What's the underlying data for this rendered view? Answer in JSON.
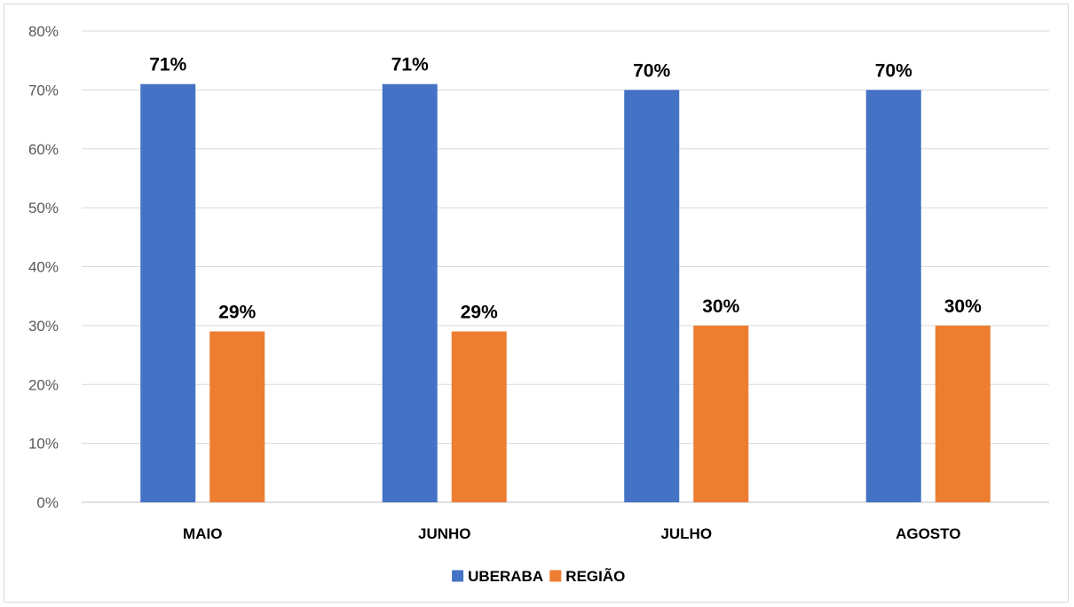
{
  "chart_data": {
    "type": "bar",
    "categories": [
      "MAIO",
      "JUNHO",
      "JULHO",
      "AGOSTO"
    ],
    "series": [
      {
        "name": "UBERABA",
        "values": [
          71,
          71,
          70,
          70
        ],
        "labels": [
          "71%",
          "71%",
          "70%",
          "70%"
        ],
        "color": "#4472c4"
      },
      {
        "name": "REGIÃO",
        "values": [
          29,
          29,
          30,
          30
        ],
        "labels": [
          "29%",
          "29%",
          "30%",
          "30%"
        ],
        "color": "#ed7d31"
      }
    ],
    "ylim": [
      0,
      80
    ],
    "yticks": [
      "0%",
      "10%",
      "20%",
      "30%",
      "40%",
      "50%",
      "60%",
      "70%",
      "80%"
    ],
    "grid": true,
    "legend": "bottom",
    "title": "",
    "xlabel": "",
    "ylabel": ""
  }
}
